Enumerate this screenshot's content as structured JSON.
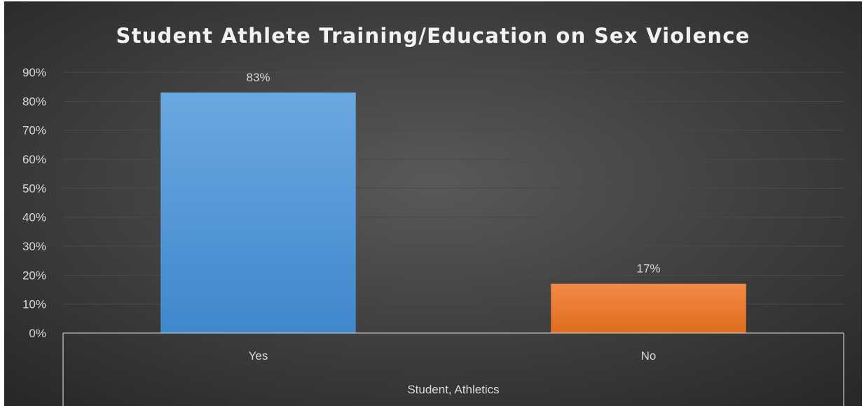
{
  "chart_data": {
    "type": "bar",
    "title": "Student Athlete Training/Education on Sex Violence",
    "categories": [
      "Yes",
      "No"
    ],
    "values": [
      0.83,
      0.17
    ],
    "data_labels": [
      "83%",
      "17%"
    ],
    "group_label": "Student, Athletics",
    "ylim": [
      0,
      0.9
    ],
    "yticks": [
      0,
      0.1,
      0.2,
      0.3,
      0.4,
      0.5,
      0.6,
      0.7,
      0.8,
      0.9
    ],
    "ytick_labels": [
      "0%",
      "10%",
      "20%",
      "30%",
      "40%",
      "50%",
      "60%",
      "70%",
      "80%",
      "90%"
    ],
    "grid": true,
    "legend": "none",
    "colors": {
      "background_light": "#595959",
      "background_dark": "#262626",
      "bars": [
        "#5b9bd5",
        "#ed7d31"
      ],
      "bar_gradients": [
        [
          "#6aa8e0",
          "#3f88cc"
        ],
        [
          "#f28a45",
          "#e06c1f"
        ]
      ],
      "gridline": "#4a4a4a",
      "axis": "#bfbfbf",
      "text": "#d9d9d9",
      "title": "#f2f2f2"
    }
  }
}
